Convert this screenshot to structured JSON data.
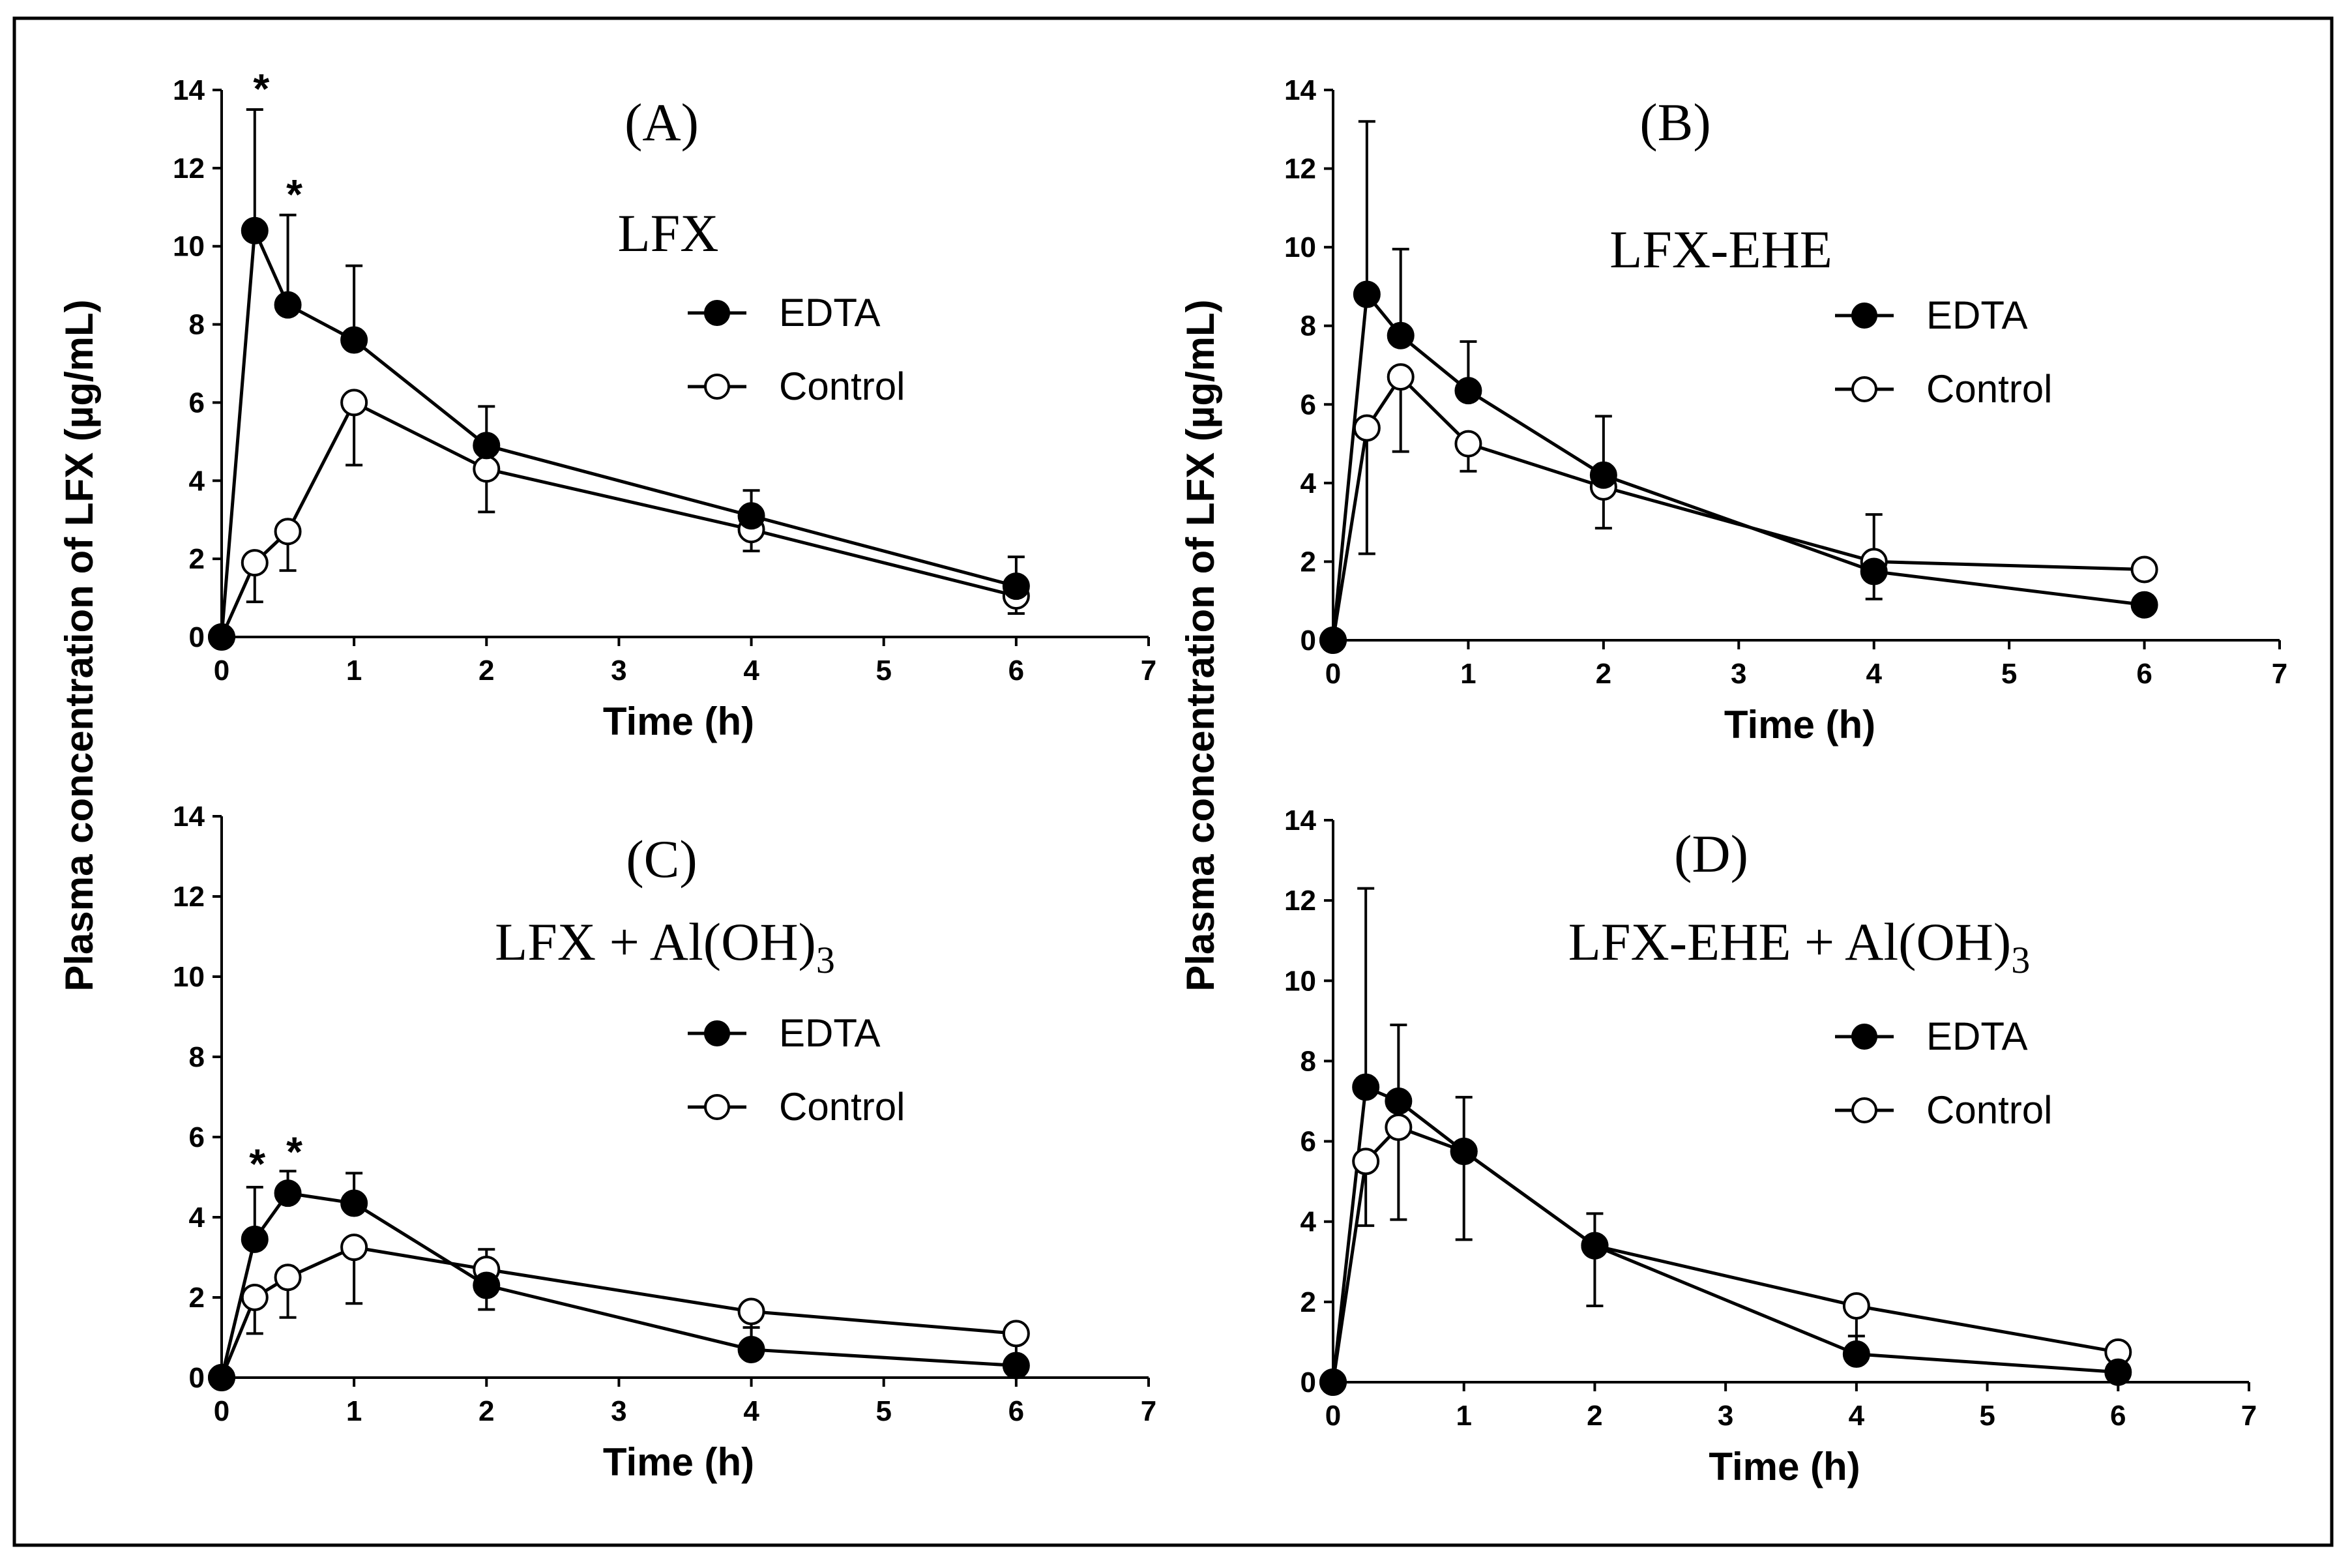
{
  "figure": {
    "ylabel": "Plasma concentration of  LFX (µg/mL)",
    "colors": {
      "line": "#000000",
      "edta_fill": "#000000",
      "control_fill": "#ffffff",
      "frame": "#000000"
    }
  },
  "chart_data": [
    {
      "type": "line",
      "panel": "(A)",
      "title": "LFX",
      "title_sub": "",
      "xlabel": "Time (h)",
      "ylabel": "Plasma concentration of  LFX (µg/mL)",
      "xlim": [
        0,
        7
      ],
      "ylim": [
        0,
        14
      ],
      "xticks": [
        0,
        1,
        2,
        3,
        4,
        5,
        6,
        7
      ],
      "yticks": [
        0,
        2,
        4,
        6,
        8,
        10,
        12,
        14
      ],
      "x": [
        0,
        0.25,
        0.5,
        1,
        2,
        4,
        6
      ],
      "series": [
        {
          "name": "EDTA",
          "marker": "filled",
          "values": [
            0,
            10.4,
            8.5,
            7.6,
            4.9,
            3.1,
            1.3
          ],
          "err": [
            0,
            3.1,
            2.3,
            1.9,
            1.0,
            0.65,
            0.75
          ]
        },
        {
          "name": "Control",
          "marker": "open",
          "values": [
            0,
            1.9,
            2.7,
            6.0,
            4.3,
            2.75,
            1.05
          ],
          "err": [
            0,
            1.0,
            1.0,
            1.6,
            1.1,
            0.55,
            0.45
          ]
        }
      ],
      "annotations": [
        {
          "text": "*",
          "x": 0.25,
          "y": 14.0
        },
        {
          "text": "*",
          "x": 0.5,
          "y": 11.3
        }
      ],
      "legend": "right"
    },
    {
      "type": "line",
      "panel": "(B)",
      "title": "LFX-EHE",
      "title_sub": "",
      "xlabel": "Time (h)",
      "ylabel": "Plasma concentration of  LFX (µg/mL)",
      "xlim": [
        0,
        7
      ],
      "ylim": [
        0,
        14
      ],
      "xticks": [
        0,
        1,
        2,
        3,
        4,
        5,
        6,
        7
      ],
      "yticks": [
        0,
        2,
        4,
        6,
        8,
        10,
        12,
        14
      ],
      "x": [
        0,
        0.25,
        0.5,
        1,
        2,
        4,
        6
      ],
      "series": [
        {
          "name": "EDTA",
          "marker": "filled",
          "values": [
            0,
            8.8,
            7.75,
            6.35,
            4.2,
            1.75,
            0.9
          ],
          "err": [
            0,
            4.4,
            2.2,
            1.25,
            1.5,
            1.45,
            0
          ]
        },
        {
          "name": "Control",
          "marker": "open",
          "values": [
            0,
            5.4,
            6.7,
            5.0,
            3.9,
            2.0,
            1.8
          ],
          "err": [
            0,
            3.2,
            1.9,
            0.7,
            1.05,
            0.95,
            0
          ]
        }
      ],
      "annotations": [],
      "legend": "right"
    },
    {
      "type": "line",
      "panel": "(C)",
      "title": "LFX + Al(OH)",
      "title_sub": "3",
      "xlabel": "Time (h)",
      "ylabel": "Plasma concentration of  LFX (µg/mL)",
      "xlim": [
        0,
        7
      ],
      "ylim": [
        0,
        14
      ],
      "xticks": [
        0,
        1,
        2,
        3,
        4,
        5,
        6,
        7
      ],
      "yticks": [
        0,
        2,
        4,
        6,
        8,
        10,
        12,
        14
      ],
      "x": [
        0,
        0.25,
        0.5,
        1,
        2,
        4,
        6
      ],
      "series": [
        {
          "name": "EDTA",
          "marker": "filled",
          "values": [
            0,
            3.45,
            4.6,
            4.35,
            2.3,
            0.7,
            0.3
          ],
          "err": [
            0,
            1.3,
            0.55,
            0.75,
            0.9,
            0.55,
            0.2
          ]
        },
        {
          "name": "Control",
          "marker": "open",
          "values": [
            0,
            2.0,
            2.5,
            3.25,
            2.7,
            1.65,
            1.1
          ],
          "err": [
            0,
            0.9,
            1.0,
            1.4,
            1.0,
            1.0,
            1.0
          ]
        }
      ],
      "annotations": [
        {
          "text": "*",
          "x": 0.22,
          "y": 5.3
        },
        {
          "text": "*",
          "x": 0.5,
          "y": 5.6
        }
      ],
      "legend": "right"
    },
    {
      "type": "line",
      "panel": "(D)",
      "title": "LFX-EHE + Al(OH)",
      "title_sub": "3",
      "xlabel": "Time (h)",
      "ylabel": "Plasma concentration of  LFX (µg/mL)",
      "xlim": [
        0,
        7
      ],
      "ylim": [
        0,
        14
      ],
      "xticks": [
        0,
        1,
        2,
        3,
        4,
        5,
        6,
        7
      ],
      "yticks": [
        0,
        2,
        4,
        6,
        8,
        10,
        12,
        14
      ],
      "x": [
        0,
        0.25,
        0.5,
        1,
        2,
        4,
        6
      ],
      "series": [
        {
          "name": "EDTA",
          "marker": "filled",
          "values": [
            0,
            7.35,
            7.0,
            5.75,
            3.4,
            0.7,
            0.25
          ],
          "err": [
            0,
            4.95,
            1.9,
            1.35,
            0.8,
            0.45,
            0.2
          ]
        },
        {
          "name": "Control",
          "marker": "open",
          "values": [
            0,
            5.5,
            6.35,
            5.75,
            3.4,
            1.9,
            0.75
          ],
          "err": [
            0,
            1.6,
            2.3,
            2.2,
            1.5,
            1.0,
            0.4
          ]
        }
      ],
      "annotations": [],
      "legend": "right"
    }
  ]
}
